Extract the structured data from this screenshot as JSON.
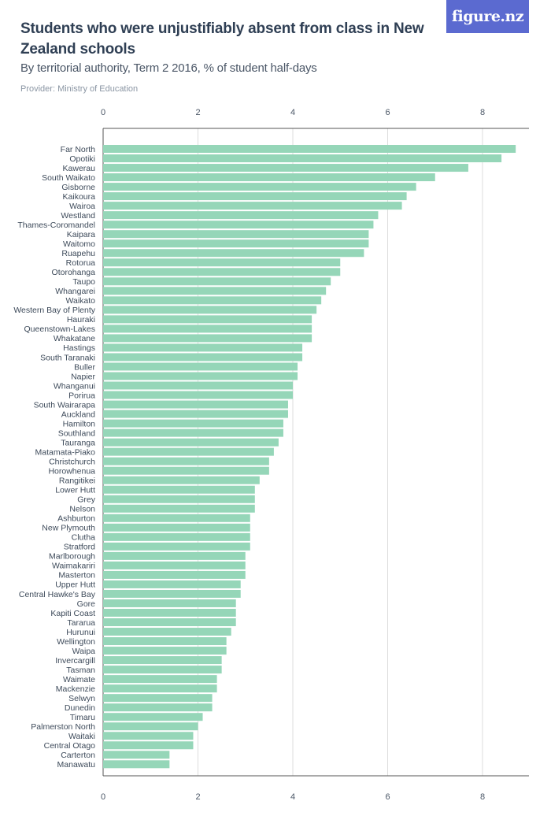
{
  "header": {
    "title": "Students who were unjustifiably absent from class in New Zealand schools",
    "subtitle": "By territorial authority, Term 2 2016, % of student half-days",
    "provider": "Provider: Ministry of Education",
    "logo_text": "figure.nz"
  },
  "colors": {
    "bar": "#95d6b8",
    "grid": "#dddddd",
    "axis": "#555555",
    "logo_bg": "#5b6ad0"
  },
  "chart_data": {
    "type": "bar",
    "orientation": "horizontal",
    "title": "Students who were unjustifiably absent from class in New Zealand schools",
    "subtitle": "By territorial authority, Term 2 2016, % of student half-days",
    "xlim": [
      0,
      9
    ],
    "ticks": [
      0,
      2,
      4,
      6,
      8
    ],
    "grid": true,
    "categories": [
      "Far North",
      "Opotiki",
      "Kawerau",
      "South Waikato",
      "Gisborne",
      "Kaikoura",
      "Wairoa",
      "Westland",
      "Thames-Coromandel",
      "Kaipara",
      "Waitomo",
      "Ruapehu",
      "Rotorua",
      "Otorohanga",
      "Taupo",
      "Whangarei",
      "Waikato",
      "Western Bay of Plenty",
      "Hauraki",
      "Queenstown-Lakes",
      "Whakatane",
      "Hastings",
      "South Taranaki",
      "Buller",
      "Napier",
      "Whanganui",
      "Porirua",
      "South Wairarapa",
      "Auckland",
      "Hamilton",
      "Southland",
      "Tauranga",
      "Matamata-Piako",
      "Christchurch",
      "Horowhenua",
      "Rangitikei",
      "Lower Hutt",
      "Grey",
      "Nelson",
      "Ashburton",
      "New Plymouth",
      "Clutha",
      "Stratford",
      "Marlborough",
      "Waimakariri",
      "Masterton",
      "Upper Hutt",
      "Central Hawke's Bay",
      "Gore",
      "Kapiti Coast",
      "Tararua",
      "Hurunui",
      "Wellington",
      "Waipa",
      "Invercargill",
      "Tasman",
      "Waimate",
      "Mackenzie",
      "Selwyn",
      "Dunedin",
      "Timaru",
      "Palmerston North",
      "Waitaki",
      "Central Otago",
      "Carterton",
      "Manawatu"
    ],
    "values": [
      8.7,
      8.4,
      7.7,
      7.0,
      6.6,
      6.4,
      6.3,
      5.8,
      5.7,
      5.6,
      5.6,
      5.5,
      5.0,
      5.0,
      4.8,
      4.7,
      4.6,
      4.5,
      4.4,
      4.4,
      4.4,
      4.2,
      4.2,
      4.1,
      4.1,
      4.0,
      4.0,
      3.9,
      3.9,
      3.8,
      3.8,
      3.7,
      3.6,
      3.5,
      3.5,
      3.3,
      3.2,
      3.2,
      3.2,
      3.1,
      3.1,
      3.1,
      3.1,
      3.0,
      3.0,
      3.0,
      2.9,
      2.9,
      2.8,
      2.8,
      2.8,
      2.7,
      2.6,
      2.6,
      2.5,
      2.5,
      2.4,
      2.4,
      2.3,
      2.3,
      2.1,
      2.0,
      1.9,
      1.9,
      1.4,
      1.4
    ]
  }
}
